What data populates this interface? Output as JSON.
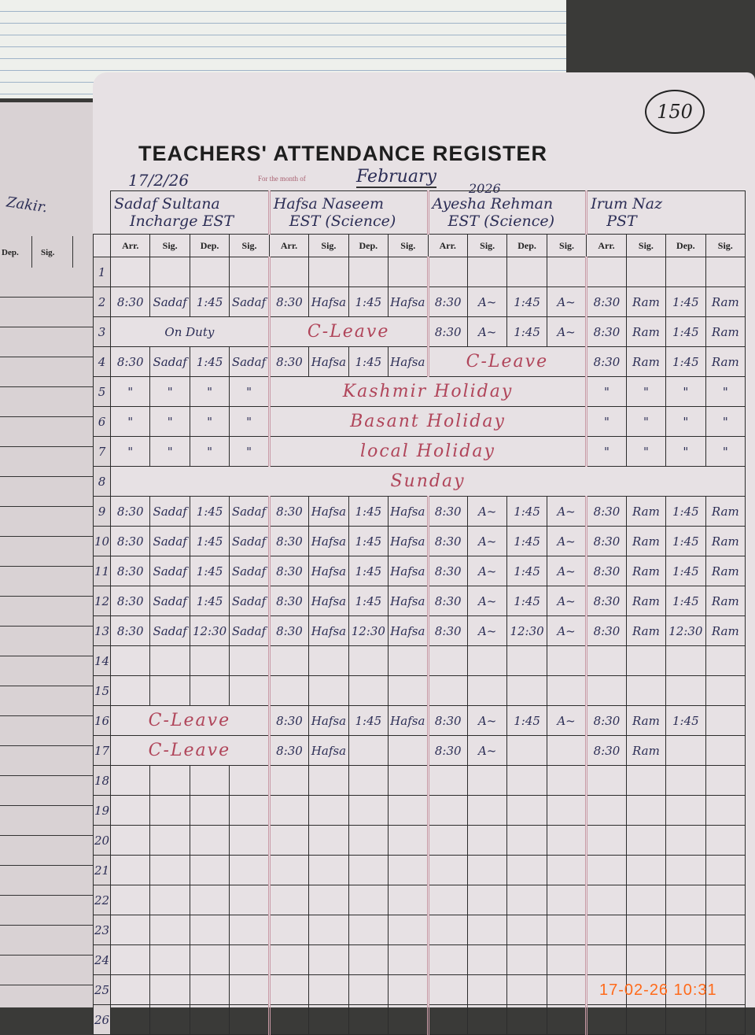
{
  "left_page": {
    "name": "Zakir.",
    "headers": [
      "Dep.",
      "Sig."
    ]
  },
  "register": {
    "title": "TEACHERS' ATTENDANCE REGISTER",
    "page_number": "150",
    "signed_date": "17/2/26",
    "month_label": "For the month of",
    "month": "February",
    "year": "2026",
    "column_headers": [
      "Arr.",
      "Sig.",
      "Dep.",
      "Sig."
    ],
    "teachers": [
      {
        "name": "Sadaf Sultana",
        "designation": "Incharge EST"
      },
      {
        "name": "Hafsa Naseem",
        "designation": "EST (Science)"
      },
      {
        "name": "Ayesha Rehman",
        "designation": "EST (Science)"
      },
      {
        "name": "Irum Naz",
        "designation": "PST"
      }
    ],
    "rows": [
      {
        "no": "1",
        "entries": []
      },
      {
        "no": "2",
        "entries": [
          "8:30",
          "Sadaf",
          "1:45",
          "Sadaf",
          "8:30",
          "Hafsa",
          "1:45",
          "Hafsa",
          "8:30",
          "A~",
          "1:45",
          "A~",
          "8:30",
          "Ram",
          "1:45",
          "Ram"
        ]
      },
      {
        "no": "3",
        "entries": [
          {
            "text": "On Duty",
            "span": 4,
            "note": false
          },
          {
            "text": "C-Leave",
            "span": 4,
            "note": true
          },
          "8:30",
          "A~",
          "1:45",
          "A~",
          "8:30",
          "Ram",
          "1:45",
          "Ram"
        ]
      },
      {
        "no": "4",
        "entries": [
          "8:30",
          "Sadaf",
          "1:45",
          "Sadaf",
          "8:30",
          "Hafsa",
          "1:45",
          "Hafsa",
          {
            "text": "C-Leave",
            "span": 4,
            "note": true
          },
          "8:30",
          "Ram",
          "1:45",
          "Ram"
        ]
      },
      {
        "no": "5",
        "entries": [
          "\"",
          "\"",
          "\"",
          "\"",
          {
            "text": "Kashmir Holiday",
            "span": 8,
            "note": true
          },
          "\"",
          "\"",
          "\"",
          "\""
        ]
      },
      {
        "no": "6",
        "entries": [
          "\"",
          "\"",
          "\"",
          "\"",
          {
            "text": "Basant Holiday",
            "span": 8,
            "note": true
          },
          "\"",
          "\"",
          "\"",
          "\""
        ]
      },
      {
        "no": "7",
        "entries": [
          "\"",
          "\"",
          "\"",
          "\"",
          {
            "text": "local Holiday",
            "span": 8,
            "note": true
          },
          "\"",
          "\"",
          "\"",
          "\""
        ]
      },
      {
        "no": "8",
        "entries": [
          {
            "text": "Sunday",
            "span": 16,
            "note": true
          }
        ]
      },
      {
        "no": "9",
        "entries": [
          "8:30",
          "Sadaf",
          "1:45",
          "Sadaf",
          "8:30",
          "Hafsa",
          "1:45",
          "Hafsa",
          "8:30",
          "A~",
          "1:45",
          "A~",
          "8:30",
          "Ram",
          "1:45",
          "Ram"
        ]
      },
      {
        "no": "10",
        "entries": [
          "8:30",
          "Sadaf",
          "1:45",
          "Sadaf",
          "8:30",
          "Hafsa",
          "1:45",
          "Hafsa",
          "8:30",
          "A~",
          "1:45",
          "A~",
          "8:30",
          "Ram",
          "1:45",
          "Ram"
        ]
      },
      {
        "no": "11",
        "entries": [
          "8:30",
          "Sadaf",
          "1:45",
          "Sadaf",
          "8:30",
          "Hafsa",
          "1:45",
          "Hafsa",
          "8:30",
          "A~",
          "1:45",
          "A~",
          "8:30",
          "Ram",
          "1:45",
          "Ram"
        ]
      },
      {
        "no": "12",
        "entries": [
          "8:30",
          "Sadaf",
          "1:45",
          "Sadaf",
          "8:30",
          "Hafsa",
          "1:45",
          "Hafsa",
          "8:30",
          "A~",
          "1:45",
          "A~",
          "8:30",
          "Ram",
          "1:45",
          "Ram"
        ]
      },
      {
        "no": "13",
        "entries": [
          "8:30",
          "Sadaf",
          "12:30",
          "Sadaf",
          "8:30",
          "Hafsa",
          "12:30",
          "Hafsa",
          "8:30",
          "A~",
          "12:30",
          "A~",
          "8:30",
          "Ram",
          "12:30",
          "Ram"
        ]
      },
      {
        "no": "14",
        "entries": []
      },
      {
        "no": "15",
        "entries": []
      },
      {
        "no": "16",
        "entries": [
          {
            "text": "C-Leave",
            "span": 4,
            "note": true
          },
          "8:30",
          "Hafsa",
          "1:45",
          "Hafsa",
          "8:30",
          "A~",
          "1:45",
          "A~",
          "8:30",
          "Ram",
          "1:45",
          ""
        ]
      },
      {
        "no": "17",
        "entries": [
          {
            "text": "C-Leave",
            "span": 4,
            "note": true
          },
          "8:30",
          "Hafsa",
          "",
          "",
          "8:30",
          "A~",
          "",
          "",
          "8:30",
          "Ram",
          "",
          ""
        ]
      },
      {
        "no": "18",
        "entries": []
      },
      {
        "no": "19",
        "entries": []
      },
      {
        "no": "20",
        "entries": []
      },
      {
        "no": "21",
        "entries": []
      },
      {
        "no": "22",
        "entries": []
      },
      {
        "no": "23",
        "entries": []
      },
      {
        "no": "24",
        "entries": []
      },
      {
        "no": "25",
        "entries": []
      },
      {
        "no": "26",
        "entries": []
      }
    ]
  },
  "camera_timestamp": "17-02-26  10:31",
  "colors": {
    "ink": "#2b2d55",
    "red_ink": "#b0455a",
    "timestamp": "#ff6a1a",
    "paper": "#e7e1e4"
  }
}
